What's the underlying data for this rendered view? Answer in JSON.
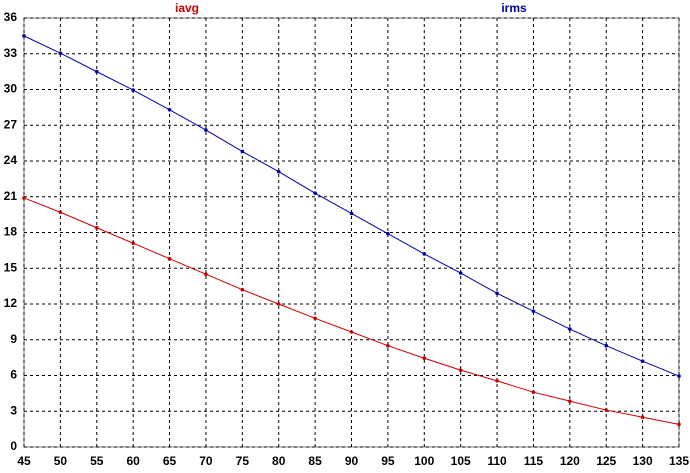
{
  "chart_data": {
    "type": "line",
    "x": [
      45,
      50,
      55,
      60,
      65,
      70,
      75,
      80,
      85,
      90,
      95,
      100,
      105,
      110,
      115,
      120,
      125,
      130,
      135
    ],
    "series": [
      {
        "name": "iavg",
        "color": "#cc0000",
        "values": [
          20.9,
          19.7,
          18.4,
          17.1,
          15.8,
          14.5,
          13.2,
          12.0,
          10.8,
          9.65,
          8.5,
          7.45,
          6.45,
          5.55,
          4.6,
          3.85,
          3.1,
          2.5,
          1.9
        ]
      },
      {
        "name": "irms",
        "color": "#0000aa",
        "values": [
          34.5,
          33.05,
          31.5,
          29.95,
          28.3,
          26.6,
          24.8,
          23.1,
          21.3,
          19.6,
          17.9,
          16.2,
          14.6,
          12.9,
          11.4,
          9.9,
          8.5,
          7.2,
          5.95
        ]
      }
    ],
    "xlim": [
      45,
      135
    ],
    "xticks": [
      45,
      50,
      55,
      60,
      65,
      70,
      75,
      80,
      85,
      90,
      95,
      100,
      105,
      110,
      115,
      120,
      125,
      130,
      135
    ],
    "ylim": [
      0,
      36
    ],
    "yticks": [
      0,
      3,
      6,
      9,
      12,
      15,
      18,
      21,
      24,
      27,
      30,
      33,
      36
    ],
    "grid": true
  }
}
